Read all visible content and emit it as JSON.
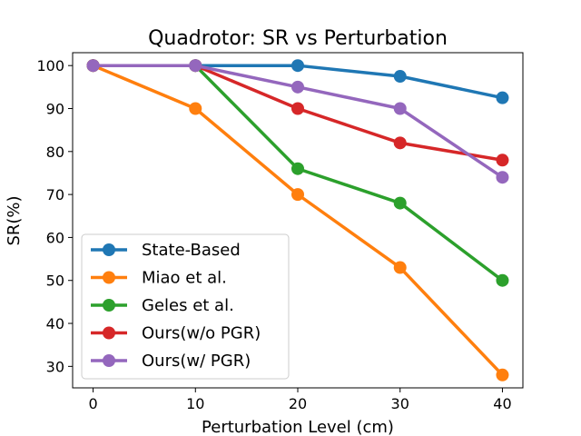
{
  "chart_data": {
    "type": "line",
    "title": "Quadrotor: SR vs Perturbation",
    "xlabel": "Perturbation Level (cm)",
    "ylabel": "SR(%)",
    "x": [
      0,
      10,
      20,
      30,
      40
    ],
    "xticks": [
      "0",
      "10",
      "20",
      "30",
      "40"
    ],
    "yticks": [
      "30",
      "40",
      "50",
      "60",
      "70",
      "80",
      "90",
      "100"
    ],
    "xlim": [
      -2,
      42
    ],
    "ylim": [
      25,
      103
    ],
    "grid": false,
    "legend_position": "lower-left",
    "series": [
      {
        "name": "State-Based",
        "color": "#1f77b4",
        "values": [
          100,
          100,
          100,
          97.5,
          92.5
        ]
      },
      {
        "name": "Miao et al.",
        "color": "#ff7f0e",
        "values": [
          100,
          90,
          70,
          53,
          28
        ]
      },
      {
        "name": "Geles et al.",
        "color": "#2ca02c",
        "values": [
          100,
          100,
          76,
          68,
          50
        ]
      },
      {
        "name": "Ours(w/o PGR)",
        "color": "#d62728",
        "values": [
          100,
          100,
          90,
          82,
          78
        ]
      },
      {
        "name": "Ours(w/ PGR)",
        "color": "#9467bd",
        "values": [
          100,
          100,
          95,
          90,
          74
        ]
      }
    ]
  }
}
